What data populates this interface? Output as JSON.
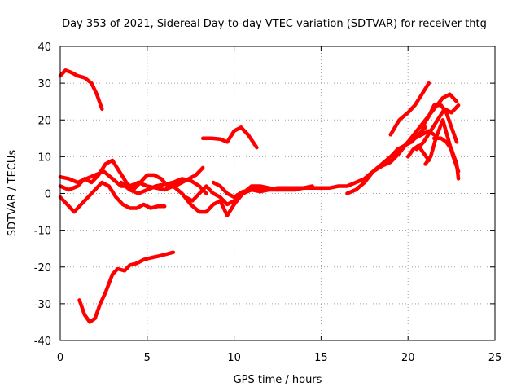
{
  "chart_data": {
    "type": "line",
    "title": "Day 353 of 2021, Sidereal Day-to-day VTEC variation (SDTVAR) for receiver thtg",
    "xlabel": "GPS time / hours",
    "ylabel": "SDTVAR / TECUs",
    "xlim": [
      0,
      25
    ],
    "ylim": [
      -40,
      40
    ],
    "xticks": [
      "0",
      "5",
      "10",
      "15",
      "20",
      "25"
    ],
    "yticks": [
      "-40",
      "-30",
      "-20",
      "-10",
      "0",
      "10",
      "20",
      "30",
      "40"
    ],
    "grid": true,
    "color": "#ff0000",
    "series": [
      {
        "name": "track-1",
        "x": [
          0,
          0.3,
          0.6,
          1.0,
          1.4,
          1.8,
          2.1,
          2.4
        ],
        "y": [
          32,
          33.5,
          33,
          32,
          31.5,
          30,
          27,
          23
        ]
      },
      {
        "name": "track-2",
        "x": [
          1.1,
          1.4,
          1.7,
          2.0,
          2.3,
          2.6,
          3.0,
          3.3,
          3.7,
          4.0,
          4.4,
          4.8,
          5.2,
          5.7,
          6.1,
          6.5
        ],
        "y": [
          -29,
          -33,
          -35,
          -34,
          -30,
          -27,
          -22,
          -20.5,
          -21,
          -19.5,
          -19,
          -18,
          -17.5,
          -17,
          -16.5,
          -16
        ]
      },
      {
        "name": "track-3",
        "x": [
          8.2,
          8.7,
          9.2,
          9.6,
          10.0,
          10.4,
          10.8,
          11.3
        ],
        "y": [
          15,
          15,
          14.8,
          14,
          17,
          18,
          16,
          12.5
        ]
      },
      {
        "name": "track-4",
        "x": [
          0,
          0.5,
          1.0,
          1.4,
          1.8,
          2.2,
          2.6,
          3.0,
          3.4,
          3.8,
          4.2,
          4.6,
          5.0,
          5.4,
          5.8,
          6.2,
          6.6,
          7.0,
          7.4,
          7.8,
          8.2
        ],
        "y": [
          2,
          1,
          2,
          4,
          3,
          5,
          8,
          9,
          6,
          3,
          1,
          3,
          5,
          5,
          4,
          2,
          2,
          3,
          4,
          5,
          7
        ]
      },
      {
        "name": "track-5",
        "x": [
          0,
          0.4,
          0.8,
          1.2,
          1.6,
          2.0,
          2.4,
          2.8,
          3.2,
          3.6,
          4.0,
          4.4,
          4.8,
          5.2,
          5.6,
          6.0
        ],
        "y": [
          -1,
          -3,
          -5,
          -3,
          -1,
          1,
          3,
          2,
          -1,
          -3,
          -4,
          -4,
          -3,
          -4,
          -3.5,
          -3.5
        ]
      },
      {
        "name": "track-6",
        "x": [
          0,
          0.5,
          1.0,
          1.5,
          2.0,
          2.5,
          3.0,
          3.5,
          4.0,
          4.5,
          5.0,
          5.5,
          6.0,
          6.5,
          7.0
        ],
        "y": [
          4.5,
          4,
          3,
          4,
          5,
          6,
          4,
          2,
          2,
          3,
          2,
          1.5,
          1,
          2,
          3
        ]
      },
      {
        "name": "track-7",
        "x": [
          3.5,
          4.0,
          4.5,
          5.0,
          5.5,
          6.0,
          6.5,
          7.0,
          7.5,
          8.0,
          8.4
        ],
        "y": [
          3,
          1,
          0,
          1,
          2,
          2.5,
          3,
          4,
          3.5,
          2,
          0
        ]
      },
      {
        "name": "track-8",
        "x": [
          7.2,
          7.6,
          8.0,
          8.4,
          8.8,
          9.2,
          9.6,
          10.0,
          10.5,
          11.0,
          11.5,
          12.0,
          12.5,
          13.0,
          13.5,
          14.0,
          14.5,
          15.0,
          15.5,
          16.0,
          16.5,
          17.0,
          17.5,
          18.0,
          18.5,
          19.0
        ],
        "y": [
          -1,
          -2,
          0,
          2,
          0,
          -1,
          -3,
          -2,
          0,
          1,
          1.5,
          1,
          1.5,
          1.5,
          1.5,
          1.5,
          1.5,
          1.5,
          1.5,
          2,
          2,
          3,
          4,
          6,
          7.5,
          9
        ]
      },
      {
        "name": "track-9",
        "x": [
          6.5,
          7.0,
          7.5,
          8.0,
          8.4,
          8.8,
          9.2,
          9.6,
          10.0,
          10.5,
          11.0,
          11.5,
          12.0,
          12.5,
          13.0,
          13.5,
          14.0,
          14.5
        ],
        "y": [
          2,
          0,
          -3,
          -5,
          -5,
          -3,
          -2,
          -6,
          -3,
          0,
          2,
          2,
          1.5,
          1,
          1,
          1,
          1.5,
          2
        ]
      },
      {
        "name": "track-10",
        "x": [
          8.8,
          9.2,
          9.6,
          10.0,
          10.5,
          11.0,
          11.5,
          12.0,
          12.5,
          13.0
        ],
        "y": [
          3,
          2,
          0,
          -1,
          0.5,
          1,
          0.5,
          1,
          1,
          1.5
        ]
      },
      {
        "name": "track-11",
        "x": [
          16.5,
          17.0,
          17.5,
          18.0,
          18.5,
          19.0,
          19.4,
          19.8,
          20.2,
          20.6,
          21.0
        ],
        "y": [
          0,
          1,
          3,
          6,
          8,
          10,
          12,
          13,
          14,
          16,
          18
        ]
      },
      {
        "name": "track-12",
        "x": [
          17.5,
          18.0,
          18.5,
          19.0,
          19.5,
          20.0,
          20.5,
          21.0,
          21.5,
          22.0,
          22.4,
          22.8
        ],
        "y": [
          4,
          6,
          7.5,
          8.5,
          11,
          14,
          17,
          20,
          23,
          26,
          27,
          25
        ]
      },
      {
        "name": "track-13",
        "x": [
          19.0,
          19.5,
          20.0,
          20.4,
          20.8,
          21.2
        ],
        "y": [
          16,
          20,
          22,
          24,
          27,
          30
        ]
      },
      {
        "name": "track-14",
        "x": [
          19.2,
          19.6,
          20.0,
          20.4,
          20.8,
          21.2,
          21.5
        ],
        "y": [
          10,
          12,
          14,
          15,
          16,
          17,
          16
        ]
      },
      {
        "name": "track-15",
        "x": [
          20.5,
          20.9,
          21.3,
          21.7,
          22.1,
          22.5,
          22.9
        ],
        "y": [
          12,
          14,
          17,
          20,
          23,
          22,
          24
        ]
      },
      {
        "name": "track-16",
        "x": [
          20.8,
          21.2,
          21.5,
          21.9,
          22.2,
          22.5,
          22.8
        ],
        "y": [
          18,
          21,
          24,
          24,
          22,
          18,
          14
        ]
      },
      {
        "name": "track-17",
        "x": [
          21.5,
          21.9,
          22.2,
          22.5,
          22.8,
          22.9
        ],
        "y": [
          15,
          15,
          14,
          12,
          8,
          4
        ]
      },
      {
        "name": "track-18",
        "x": [
          21.0,
          21.3,
          21.6,
          22.0,
          22.3,
          22.6,
          22.9
        ],
        "y": [
          8,
          10,
          15,
          20,
          15,
          10,
          6
        ]
      },
      {
        "name": "track-19",
        "x": [
          20.0,
          20.3,
          20.6,
          20.9,
          21.2
        ],
        "y": [
          10,
          12,
          13,
          11,
          9
        ]
      }
    ]
  }
}
